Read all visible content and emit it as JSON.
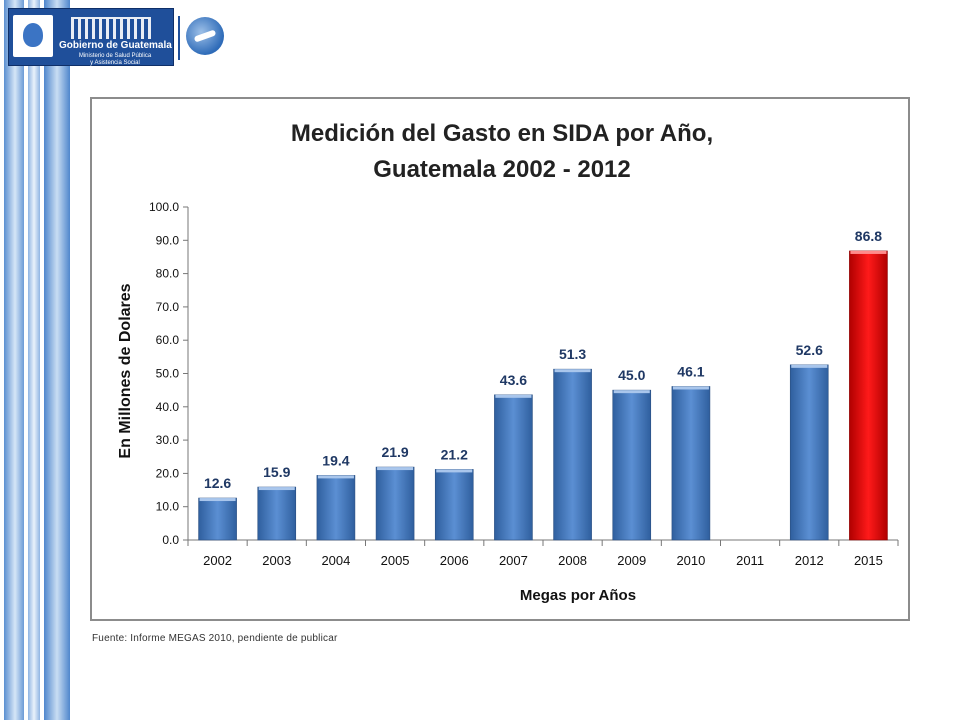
{
  "header": {
    "logo_title": "Gobierno de Guatemala",
    "logo_sub_line1": "Ministerio de Salud Pública",
    "logo_sub_line2": "y Asistencia Social"
  },
  "chart_data": {
    "type": "bar",
    "title_line1": "Medición del Gasto en SIDA por Año,",
    "title_line2": "Guatemala 2002 - 2012",
    "xlabel": "Megas por Años",
    "ylabel": "En Millones de Dolares",
    "ylim": [
      0,
      100
    ],
    "ytick_step": 10,
    "categories": [
      "2002",
      "2003",
      "2004",
      "2005",
      "2006",
      "2007",
      "2008",
      "2009",
      "2010",
      "2011",
      "2012",
      "2015"
    ],
    "values": [
      12.6,
      15.9,
      19.4,
      21.9,
      21.2,
      43.6,
      51.3,
      45.0,
      46.1,
      null,
      52.6,
      86.8
    ],
    "value_labels": [
      "12.6",
      "15.9",
      "19.4",
      "21.9",
      "21.2",
      "43.6",
      "51.3",
      "45.0",
      "46.1",
      "",
      "52.6",
      "86.8"
    ],
    "bar_color": "#4f81bd",
    "highlight_color": "#ff0000",
    "highlight_index": 11,
    "label_color_default": "#1f3864",
    "label_color_highlight": "#1f3864",
    "grid": false,
    "legend": "none"
  },
  "footer": {
    "source": "Fuente: Informe MEGAS 2010, pendiente de publicar"
  }
}
